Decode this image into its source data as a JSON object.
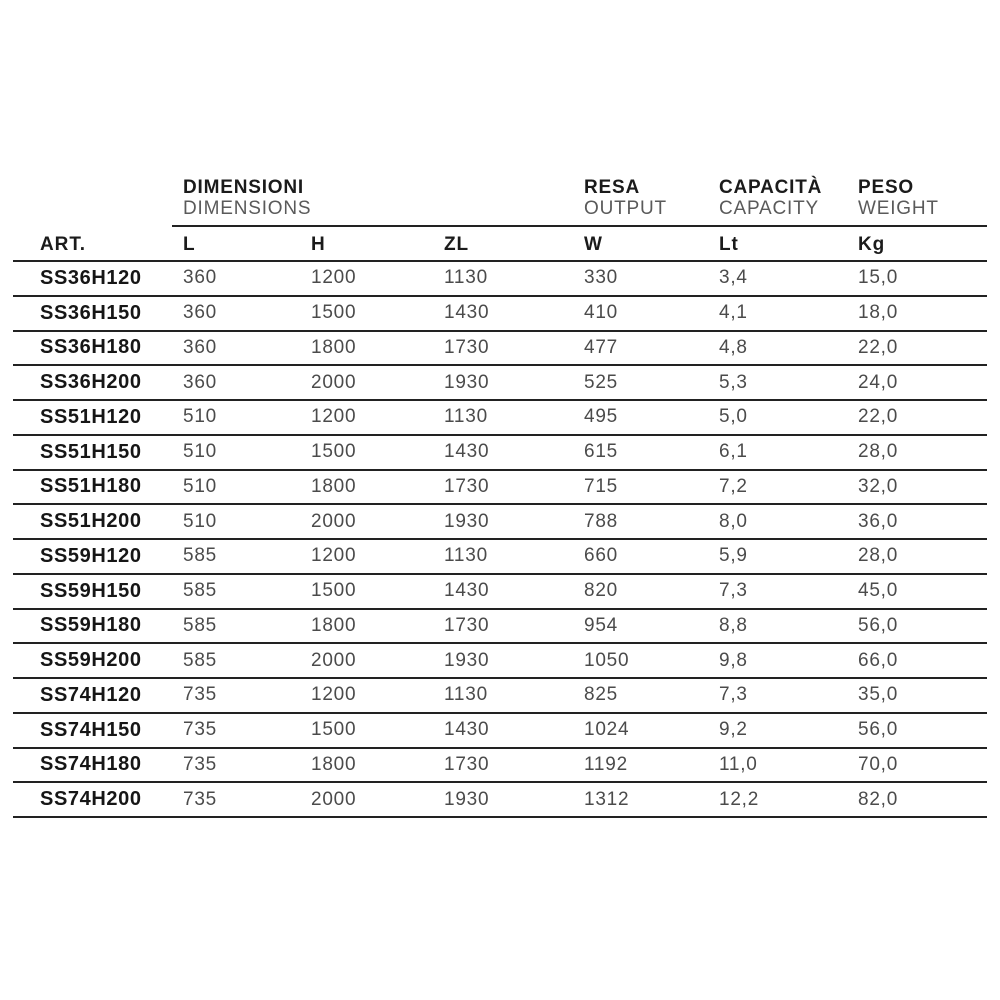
{
  "table": {
    "column_groups": [
      {
        "label_it": "DIMENSIONI",
        "label_en": "DIMENSIONS"
      },
      {
        "label_it": "RESA",
        "label_en": "OUTPUT"
      },
      {
        "label_it": "CAPACITÀ",
        "label_en": "CAPACITY"
      },
      {
        "label_it": "PESO",
        "label_en": "WEIGHT"
      }
    ],
    "columns": [
      "ART.",
      "L",
      "H",
      "ZL",
      "W",
      "Lt",
      "Kg"
    ],
    "rows": [
      [
        "SS36H120",
        "360",
        "1200",
        "1130",
        "330",
        "3,4",
        "15,0"
      ],
      [
        "SS36H150",
        "360",
        "1500",
        "1430",
        "410",
        "4,1",
        "18,0"
      ],
      [
        "SS36H180",
        "360",
        "1800",
        "1730",
        "477",
        "4,8",
        "22,0"
      ],
      [
        "SS36H200",
        "360",
        "2000",
        "1930",
        "525",
        "5,3",
        "24,0"
      ],
      [
        "SS51H120",
        "510",
        "1200",
        "1130",
        "495",
        "5,0",
        "22,0"
      ],
      [
        "SS51H150",
        "510",
        "1500",
        "1430",
        "615",
        "6,1",
        "28,0"
      ],
      [
        "SS51H180",
        "510",
        "1800",
        "1730",
        "715",
        "7,2",
        "32,0"
      ],
      [
        "SS51H200",
        "510",
        "2000",
        "1930",
        "788",
        "8,0",
        "36,0"
      ],
      [
        "SS59H120",
        "585",
        "1200",
        "1130",
        "660",
        "5,9",
        "28,0"
      ],
      [
        "SS59H150",
        "585",
        "1500",
        "1430",
        "820",
        "7,3",
        "45,0"
      ],
      [
        "SS59H180",
        "585",
        "1800",
        "1730",
        "954",
        "8,8",
        "56,0"
      ],
      [
        "SS59H200",
        "585",
        "2000",
        "1930",
        "1050",
        "9,8",
        "66,0"
      ],
      [
        "SS74H120",
        "735",
        "1200",
        "1130",
        "825",
        "7,3",
        "35,0"
      ],
      [
        "SS74H150",
        "735",
        "1500",
        "1430",
        "1024",
        "9,2",
        "56,0"
      ],
      [
        "SS74H180",
        "735",
        "1800",
        "1730",
        "1192",
        "11,0",
        "70,0"
      ],
      [
        "SS74H200",
        "735",
        "2000",
        "1930",
        "1312",
        "12,2",
        "82,0"
      ]
    ]
  },
  "colors": {
    "text_dark": "#1b1b1b",
    "text_gray": "#4b4b4b",
    "rule": "#222222",
    "background": "#ffffff"
  }
}
